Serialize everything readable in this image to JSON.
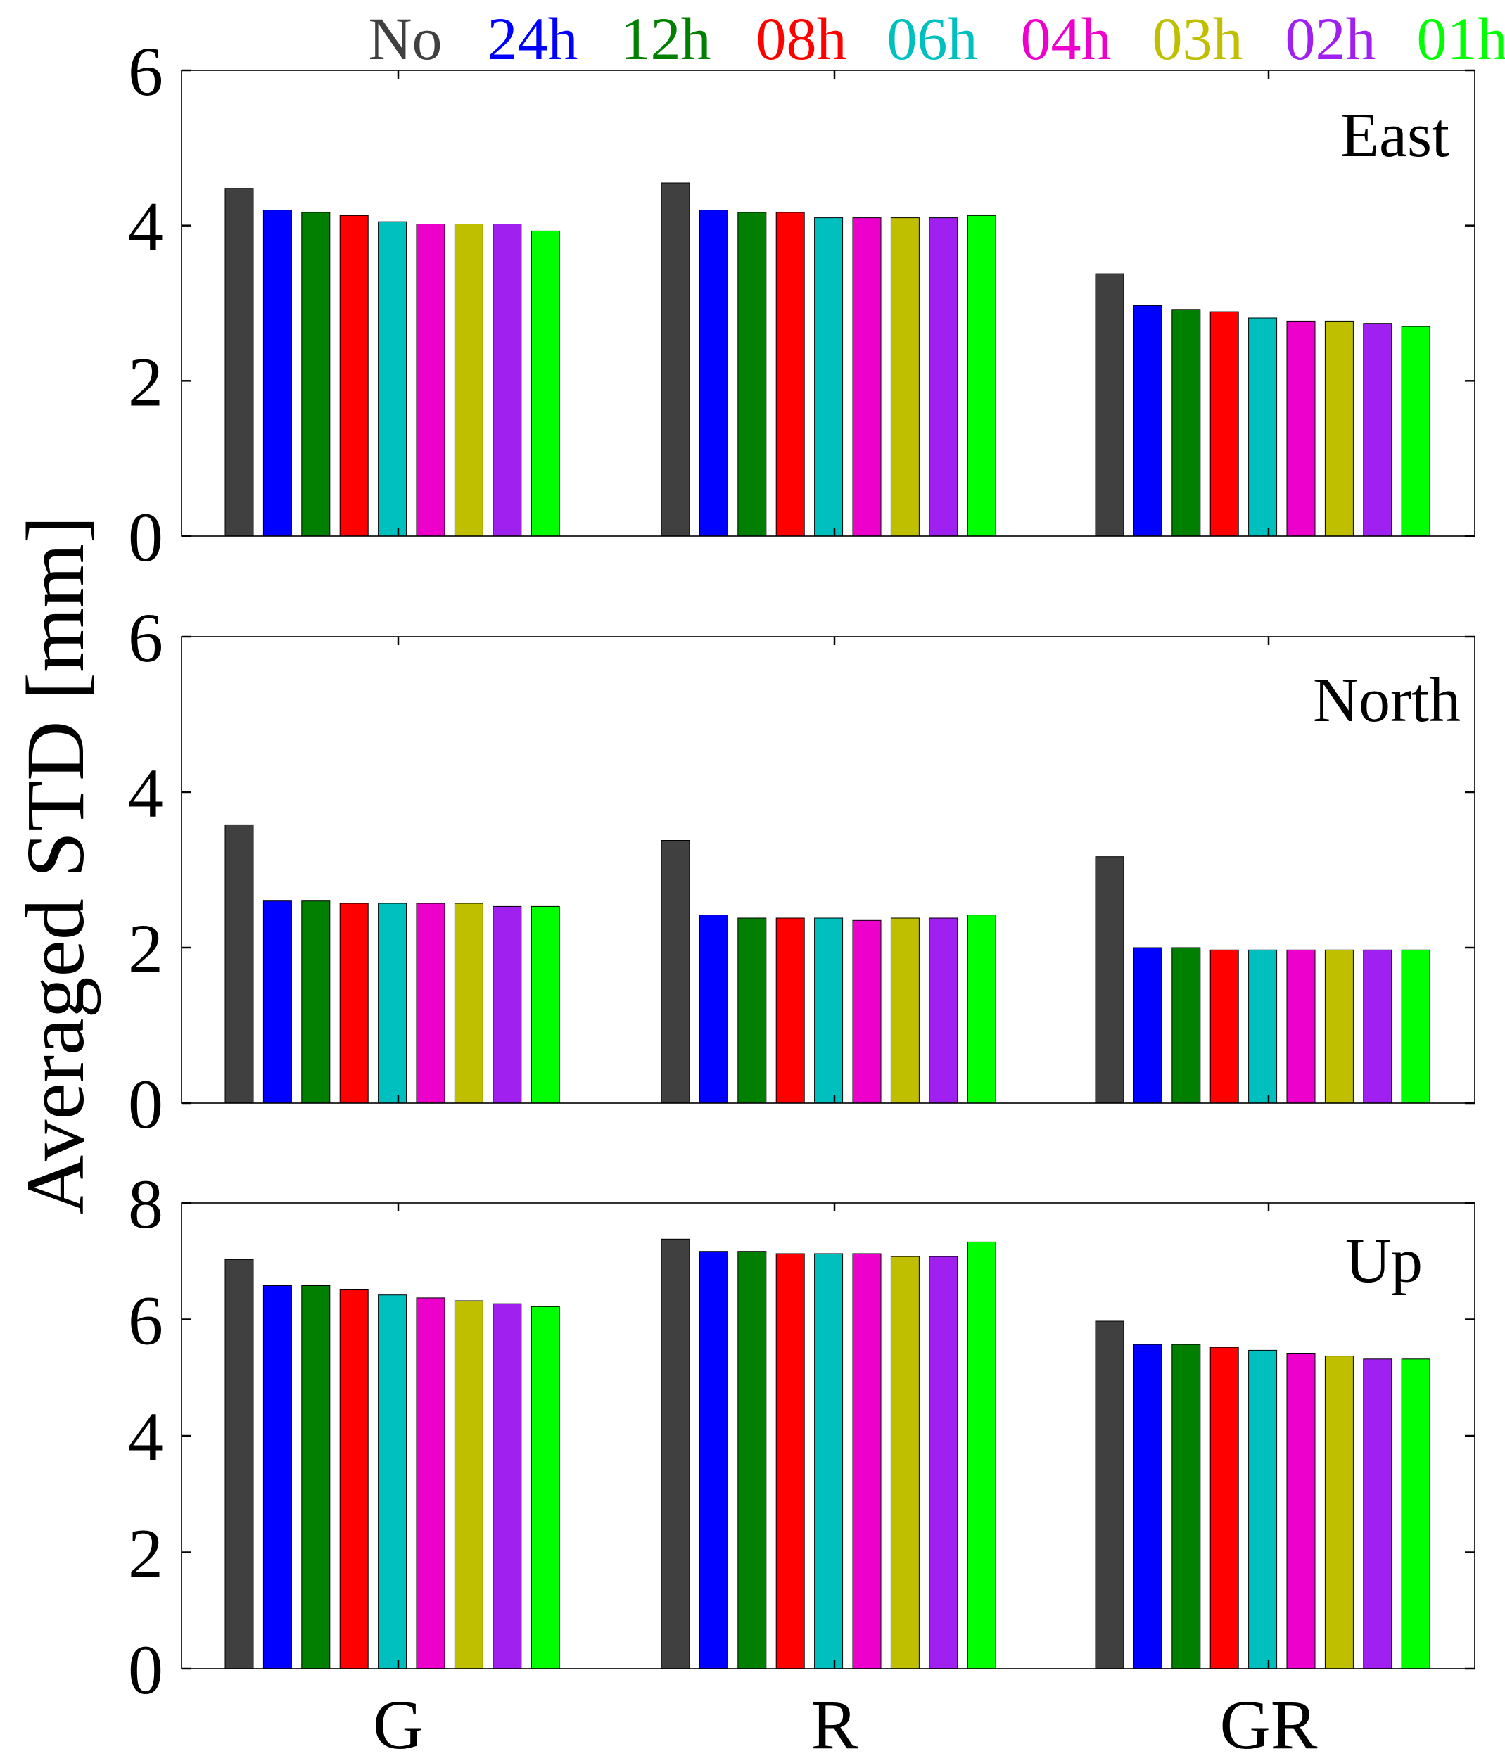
{
  "chart_data": {
    "type": "bar",
    "ylabel": "Averaged STD [mm]",
    "categories": [
      "G",
      "R",
      "GR"
    ],
    "legend": {
      "placement": "top",
      "entries": [
        {
          "name": "No",
          "color": "#404040"
        },
        {
          "name": "24h",
          "color": "#0000FF"
        },
        {
          "name": "12h",
          "color": "#007F00"
        },
        {
          "name": "08h",
          "color": "#FF0000"
        },
        {
          "name": "06h",
          "color": "#00BFBF"
        },
        {
          "name": "04h",
          "color": "#EE00CC"
        },
        {
          "name": "03h",
          "color": "#BFBF00"
        },
        {
          "name": "02h",
          "color": "#A020F0"
        },
        {
          "name": "01h",
          "color": "#00FF00"
        }
      ]
    },
    "panels": [
      {
        "title": "East",
        "ylim": [
          0,
          6
        ],
        "yticks": [
          0,
          2,
          4,
          6
        ],
        "series": [
          {
            "name": "No",
            "values": [
              4.48,
              4.55,
              3.38
            ]
          },
          {
            "name": "24h",
            "values": [
              4.2,
              4.2,
              2.97
            ]
          },
          {
            "name": "12h",
            "values": [
              4.17,
              4.17,
              2.92
            ]
          },
          {
            "name": "08h",
            "values": [
              4.13,
              4.17,
              2.89
            ]
          },
          {
            "name": "06h",
            "values": [
              4.05,
              4.1,
              2.81
            ]
          },
          {
            "name": "04h",
            "values": [
              4.02,
              4.1,
              2.77
            ]
          },
          {
            "name": "03h",
            "values": [
              4.02,
              4.1,
              2.77
            ]
          },
          {
            "name": "02h",
            "values": [
              4.02,
              4.1,
              2.74
            ]
          },
          {
            "name": "01h",
            "values": [
              3.93,
              4.13,
              2.7
            ]
          }
        ]
      },
      {
        "title": "North",
        "ylim": [
          0,
          6
        ],
        "yticks": [
          0,
          2,
          4,
          6
        ],
        "series": [
          {
            "name": "No",
            "values": [
              3.58,
              3.38,
              3.17
            ]
          },
          {
            "name": "24h",
            "values": [
              2.6,
              2.42,
              2.0
            ]
          },
          {
            "name": "12h",
            "values": [
              2.6,
              2.38,
              2.0
            ]
          },
          {
            "name": "08h",
            "values": [
              2.57,
              2.38,
              1.97
            ]
          },
          {
            "name": "06h",
            "values": [
              2.57,
              2.38,
              1.97
            ]
          },
          {
            "name": "04h",
            "values": [
              2.57,
              2.35,
              1.97
            ]
          },
          {
            "name": "03h",
            "values": [
              2.57,
              2.38,
              1.97
            ]
          },
          {
            "name": "02h",
            "values": [
              2.53,
              2.38,
              1.97
            ]
          },
          {
            "name": "01h",
            "values": [
              2.53,
              2.42,
              1.97
            ]
          }
        ]
      },
      {
        "title": "Up",
        "ylim": [
          0,
          8
        ],
        "yticks": [
          0,
          2,
          4,
          6,
          8
        ],
        "series": [
          {
            "name": "No",
            "values": [
              7.03,
              7.38,
              5.97
            ]
          },
          {
            "name": "24h",
            "values": [
              6.58,
              7.17,
              5.57
            ]
          },
          {
            "name": "12h",
            "values": [
              6.58,
              7.17,
              5.57
            ]
          },
          {
            "name": "08h",
            "values": [
              6.52,
              7.13,
              5.52
            ]
          },
          {
            "name": "06h",
            "values": [
              6.42,
              7.13,
              5.47
            ]
          },
          {
            "name": "04h",
            "values": [
              6.37,
              7.13,
              5.42
            ]
          },
          {
            "name": "03h",
            "values": [
              6.32,
              7.08,
              5.37
            ]
          },
          {
            "name": "02h",
            "values": [
              6.27,
              7.08,
              5.32
            ]
          },
          {
            "name": "01h",
            "values": [
              6.22,
              7.33,
              5.32
            ]
          }
        ]
      }
    ]
  }
}
